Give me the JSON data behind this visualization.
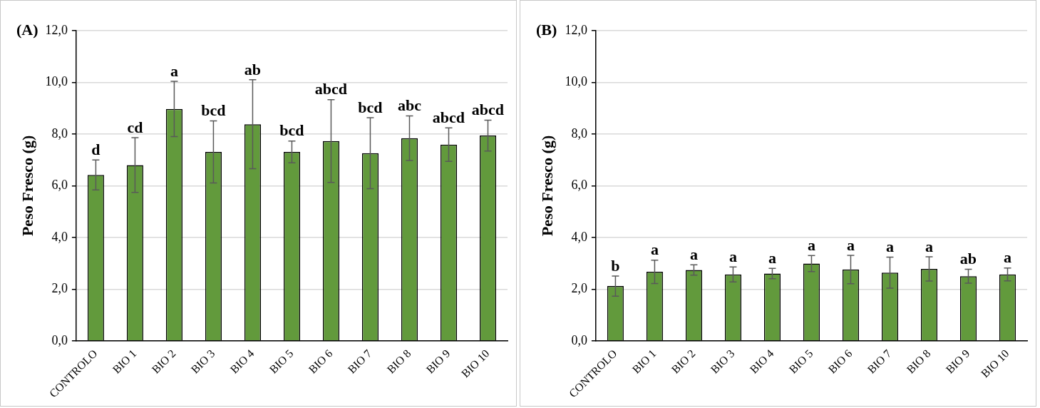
{
  "chart_data": [
    {
      "type": "bar",
      "title": "(A)",
      "ylabel": "Peso Fresco (g)",
      "categories": [
        "CONTROLO",
        "BIO 1",
        "BIO 2",
        "BIO 3",
        "BIO 4",
        "BIO 5",
        "BIO 6",
        "BIO 7",
        "BIO 8",
        "BIO 9",
        "BIO 10"
      ],
      "color": "#629a3c",
      "values": [
        6.42,
        6.8,
        8.97,
        7.31,
        8.38,
        7.31,
        7.73,
        7.26,
        7.84,
        7.59,
        7.94
      ],
      "errors": [
        0.58,
        1.06,
        1.07,
        1.2,
        1.72,
        0.42,
        1.6,
        1.37,
        0.86,
        0.65,
        0.6
      ],
      "ylim": [
        0,
        12
      ],
      "yticks": [
        {
          "value": 0,
          "label": "0,0"
        },
        {
          "value": 2,
          "label": "2,0"
        },
        {
          "value": 4,
          "label": "4,0"
        },
        {
          "value": 6,
          "label": "6,0"
        },
        {
          "value": 8,
          "label": "8,0"
        },
        {
          "value": 10,
          "label": "10,0"
        },
        {
          "value": 12,
          "label": "12,0"
        }
      ],
      "grid": "y",
      "legend": false,
      "annotations": [
        {
          "text": "d",
          "x": "CONTROLO",
          "y": 7.0
        },
        {
          "text": "cd",
          "x": "BIO 1",
          "y": 7.86
        },
        {
          "text": "a",
          "x": "BIO 2",
          "y": 10.04
        },
        {
          "text": "bcd",
          "x": "BIO 3",
          "y": 8.51
        },
        {
          "text": "ab",
          "x": "BIO 4",
          "y": 10.1
        },
        {
          "text": "bcd",
          "x": "BIO 5",
          "y": 7.73
        },
        {
          "text": "abcd",
          "x": "BIO 6",
          "y": 9.33
        },
        {
          "text": "bcd",
          "x": "BIO 7",
          "y": 8.63
        },
        {
          "text": "abc",
          "x": "BIO 8",
          "y": 8.7
        },
        {
          "text": "abcd",
          "x": "BIO 9",
          "y": 8.24
        },
        {
          "text": "abcd",
          "x": "BIO 10",
          "y": 8.54
        }
      ]
    },
    {
      "type": "bar",
      "title": "(B)",
      "ylabel": "Peso Fresco (g)",
      "categories": [
        "CONTROLO",
        "BIO 1",
        "BIO 2",
        "BIO 3",
        "BIO 4",
        "BIO 5",
        "BIO 6",
        "BIO 7",
        "BIO 8",
        "BIO 9",
        "BIO 10"
      ],
      "color": "#629a3c",
      "values": [
        2.12,
        2.67,
        2.74,
        2.57,
        2.6,
        2.99,
        2.76,
        2.64,
        2.78,
        2.5,
        2.57
      ],
      "errors": [
        0.39,
        0.45,
        0.2,
        0.29,
        0.2,
        0.31,
        0.55,
        0.6,
        0.47,
        0.27,
        0.25
      ],
      "ylim": [
        0,
        12
      ],
      "yticks": [
        {
          "value": 0,
          "label": "0,0"
        },
        {
          "value": 2,
          "label": "2,0"
        },
        {
          "value": 4,
          "label": "4,0"
        },
        {
          "value": 6,
          "label": "6,0"
        },
        {
          "value": 8,
          "label": "8,0"
        },
        {
          "value": 10,
          "label": "10,0"
        },
        {
          "value": 12,
          "label": "12,0"
        }
      ],
      "grid": "y",
      "legend": false,
      "annotations": [
        {
          "text": "b",
          "x": "CONTROLO",
          "y": 2.51
        },
        {
          "text": "a",
          "x": "BIO 1",
          "y": 3.12
        },
        {
          "text": "a",
          "x": "BIO 2",
          "y": 2.94
        },
        {
          "text": "a",
          "x": "BIO 3",
          "y": 2.86
        },
        {
          "text": "a",
          "x": "BIO 4",
          "y": 2.8
        },
        {
          "text": "a",
          "x": "BIO 5",
          "y": 3.3
        },
        {
          "text": "a",
          "x": "BIO 6",
          "y": 3.31
        },
        {
          "text": "a",
          "x": "BIO 7",
          "y": 3.24
        },
        {
          "text": "a",
          "x": "BIO 8",
          "y": 3.25
        },
        {
          "text": "ab",
          "x": "BIO 9",
          "y": 2.77
        },
        {
          "text": "a",
          "x": "BIO 10",
          "y": 2.82
        }
      ]
    }
  ]
}
